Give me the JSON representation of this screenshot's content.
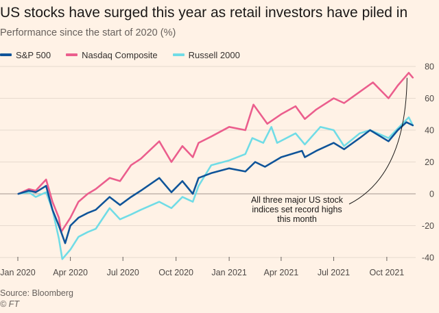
{
  "header": {
    "title": "US stocks have surged this year as retail investors have piled in",
    "subtitle": "Performance since the start of 2020 (%)"
  },
  "footer": {
    "source": "Source: Bloomberg",
    "brand": "© FT"
  },
  "colors": {
    "background": "#fff2e6",
    "gridline": "#e6d9ce",
    "zeroline": "#b3a9a0",
    "sp500": "#0f5499",
    "nasdaq": "#eb5e8d",
    "russell": "#70dce6"
  },
  "chart_data": {
    "type": "line",
    "x_ticks": [
      "Jan 2020",
      "Apr 2020",
      "Jul 2020",
      "Oct 2020",
      "Jan 2021",
      "Apr 2021",
      "Jul 2021",
      "Oct 2021"
    ],
    "y_ticks": [
      -40,
      -20,
      0,
      20,
      40,
      60,
      80
    ],
    "ylim": [
      -40,
      80
    ],
    "xlim": [
      "2020-01-01",
      "2021-11-20"
    ],
    "grid": true,
    "legend_position": "top-left",
    "annotation": {
      "lines": [
        "All three major US stock",
        "indices set record highs",
        "this month"
      ],
      "points_to": [
        "2021-11-05",
        75
      ]
    },
    "series": [
      {
        "name": "S&P 500",
        "color": "#0f5499",
        "points": [
          [
            "2020-01-02",
            0
          ],
          [
            "2020-01-20",
            2
          ],
          [
            "2020-02-01",
            1
          ],
          [
            "2020-02-19",
            5
          ],
          [
            "2020-03-01",
            -10
          ],
          [
            "2020-03-12",
            -20
          ],
          [
            "2020-03-23",
            -31
          ],
          [
            "2020-04-01",
            -20
          ],
          [
            "2020-04-15",
            -15
          ],
          [
            "2020-05-01",
            -12
          ],
          [
            "2020-05-15",
            -10
          ],
          [
            "2020-06-08",
            -2
          ],
          [
            "2020-06-26",
            -7
          ],
          [
            "2020-07-15",
            -2
          ],
          [
            "2020-08-01",
            2
          ],
          [
            "2020-09-02",
            10
          ],
          [
            "2020-09-23",
            1
          ],
          [
            "2020-10-12",
            8
          ],
          [
            "2020-10-30",
            0
          ],
          [
            "2020-11-09",
            10
          ],
          [
            "2020-12-01",
            13
          ],
          [
            "2021-01-01",
            16
          ],
          [
            "2021-01-29",
            14
          ],
          [
            "2021-02-15",
            20
          ],
          [
            "2021-03-04",
            17
          ],
          [
            "2021-04-01",
            23
          ],
          [
            "2021-05-07",
            27
          ],
          [
            "2021-05-12",
            23
          ],
          [
            "2021-06-01",
            27
          ],
          [
            "2021-07-01",
            32
          ],
          [
            "2021-07-19",
            28
          ],
          [
            "2021-08-15",
            35
          ],
          [
            "2021-09-02",
            40
          ],
          [
            "2021-10-04",
            33
          ],
          [
            "2021-10-20",
            40
          ],
          [
            "2021-11-04",
            45
          ],
          [
            "2021-11-15",
            43
          ]
        ]
      },
      {
        "name": "Nasdaq Composite",
        "color": "#eb5e8d",
        "points": [
          [
            "2020-01-02",
            0
          ],
          [
            "2020-01-20",
            3
          ],
          [
            "2020-02-01",
            2
          ],
          [
            "2020-02-19",
            9
          ],
          [
            "2020-03-01",
            -5
          ],
          [
            "2020-03-12",
            -15
          ],
          [
            "2020-03-16",
            -24
          ],
          [
            "2020-04-01",
            -15
          ],
          [
            "2020-04-15",
            -5
          ],
          [
            "2020-05-01",
            0
          ],
          [
            "2020-05-15",
            3
          ],
          [
            "2020-06-08",
            10
          ],
          [
            "2020-06-26",
            8
          ],
          [
            "2020-07-15",
            18
          ],
          [
            "2020-08-01",
            22
          ],
          [
            "2020-09-02",
            33
          ],
          [
            "2020-09-23",
            20
          ],
          [
            "2020-10-12",
            30
          ],
          [
            "2020-10-30",
            23
          ],
          [
            "2020-11-09",
            32
          ],
          [
            "2020-12-01",
            36
          ],
          [
            "2021-01-01",
            42
          ],
          [
            "2021-01-29",
            40
          ],
          [
            "2021-02-12",
            56
          ],
          [
            "2021-03-08",
            44
          ],
          [
            "2021-04-01",
            50
          ],
          [
            "2021-04-26",
            55
          ],
          [
            "2021-05-12",
            47
          ],
          [
            "2021-06-01",
            53
          ],
          [
            "2021-07-01",
            60
          ],
          [
            "2021-07-19",
            57
          ],
          [
            "2021-08-15",
            64
          ],
          [
            "2021-09-07",
            70
          ],
          [
            "2021-10-04",
            60
          ],
          [
            "2021-10-20",
            68
          ],
          [
            "2021-11-08",
            76
          ],
          [
            "2021-11-15",
            73
          ]
        ]
      },
      {
        "name": "Russell 2000",
        "color": "#70dce6",
        "points": [
          [
            "2020-01-02",
            0
          ],
          [
            "2020-01-20",
            1
          ],
          [
            "2020-02-01",
            -2
          ],
          [
            "2020-02-19",
            1
          ],
          [
            "2020-03-01",
            -10
          ],
          [
            "2020-03-12",
            -28
          ],
          [
            "2020-03-18",
            -41
          ],
          [
            "2020-04-01",
            -35
          ],
          [
            "2020-04-15",
            -27
          ],
          [
            "2020-05-01",
            -24
          ],
          [
            "2020-05-15",
            -22
          ],
          [
            "2020-06-08",
            -9
          ],
          [
            "2020-06-26",
            -16
          ],
          [
            "2020-07-15",
            -13
          ],
          [
            "2020-08-01",
            -10
          ],
          [
            "2020-09-02",
            -5
          ],
          [
            "2020-09-23",
            -9
          ],
          [
            "2020-10-12",
            -2
          ],
          [
            "2020-10-30",
            -5
          ],
          [
            "2020-11-09",
            5
          ],
          [
            "2020-12-01",
            18
          ],
          [
            "2021-01-01",
            21
          ],
          [
            "2021-01-29",
            25
          ],
          [
            "2021-02-10",
            35
          ],
          [
            "2021-03-01",
            32
          ],
          [
            "2021-03-15",
            42
          ],
          [
            "2021-03-25",
            32
          ],
          [
            "2021-04-26",
            38
          ],
          [
            "2021-05-12",
            31
          ],
          [
            "2021-06-08",
            42
          ],
          [
            "2021-07-01",
            40
          ],
          [
            "2021-07-19",
            30
          ],
          [
            "2021-08-15",
            38
          ],
          [
            "2021-09-02",
            40
          ],
          [
            "2021-10-04",
            35
          ],
          [
            "2021-10-20",
            41
          ],
          [
            "2021-11-08",
            48
          ],
          [
            "2021-11-15",
            43
          ]
        ]
      }
    ]
  }
}
